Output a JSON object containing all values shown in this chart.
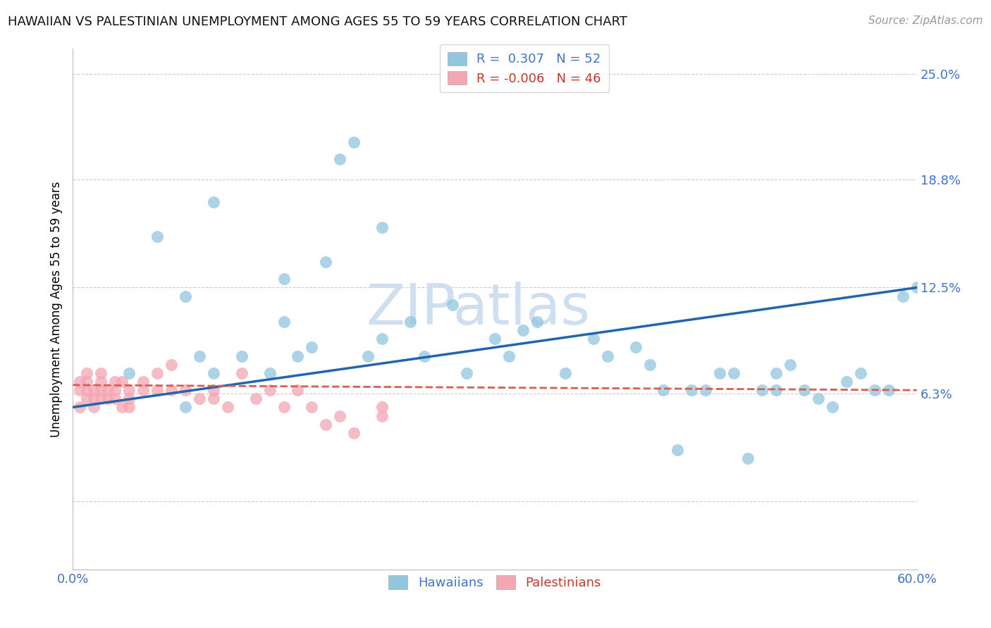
{
  "title": "HAWAIIAN VS PALESTINIAN UNEMPLOYMENT AMONG AGES 55 TO 59 YEARS CORRELATION CHART",
  "source_text": "Source: ZipAtlas.com",
  "ylabel": "Unemployment Among Ages 55 to 59 years",
  "xlim": [
    0.0,
    0.6
  ],
  "ylim": [
    -0.04,
    0.265
  ],
  "xticks": [
    0.0,
    0.1,
    0.2,
    0.3,
    0.4,
    0.5,
    0.6
  ],
  "xtick_labels": [
    "0.0%",
    "",
    "",
    "",
    "",
    "",
    "60.0%"
  ],
  "ytick_positions": [
    0.0,
    0.063,
    0.125,
    0.188,
    0.25
  ],
  "ytick_labels": [
    "",
    "6.3%",
    "12.5%",
    "18.8%",
    "25.0%"
  ],
  "hawaiian_color": "#92c5de",
  "palestinian_color": "#f4a6b2",
  "trend_hawaiian_color": "#2166ac",
  "trend_palestinian_color": "#d6604d",
  "R_hawaiian": 0.307,
  "N_hawaiian": 52,
  "R_palestinian": -0.006,
  "N_palestinian": 46,
  "watermark": "ZIPatlas",
  "watermark_color": "#d0dff0",
  "grid_color": "#cccccc",
  "background_color": "#ffffff",
  "hawaiian_x": [
    0.04,
    0.08,
    0.1,
    0.12,
    0.14,
    0.15,
    0.16,
    0.17,
    0.19,
    0.2,
    0.21,
    0.22,
    0.24,
    0.25,
    0.27,
    0.28,
    0.3,
    0.31,
    0.32,
    0.35,
    0.37,
    0.38,
    0.4,
    0.42,
    0.44,
    0.45,
    0.46,
    0.47,
    0.49,
    0.5,
    0.51,
    0.52,
    0.53,
    0.54,
    0.55,
    0.56,
    0.57,
    0.58,
    0.59,
    0.6,
    0.48,
    0.43,
    0.1,
    0.06,
    0.08,
    0.09,
    0.15,
    0.18,
    0.22,
    0.33,
    0.41,
    0.5
  ],
  "hawaiian_y": [
    0.075,
    0.055,
    0.075,
    0.085,
    0.075,
    0.105,
    0.085,
    0.09,
    0.2,
    0.21,
    0.085,
    0.095,
    0.105,
    0.085,
    0.115,
    0.075,
    0.095,
    0.085,
    0.1,
    0.075,
    0.095,
    0.085,
    0.09,
    0.065,
    0.065,
    0.065,
    0.075,
    0.075,
    0.065,
    0.065,
    0.08,
    0.065,
    0.06,
    0.055,
    0.07,
    0.075,
    0.065,
    0.065,
    0.12,
    0.125,
    0.025,
    0.03,
    0.175,
    0.155,
    0.12,
    0.085,
    0.13,
    0.14,
    0.16,
    0.105,
    0.08,
    0.075
  ],
  "palestinian_x": [
    0.005,
    0.005,
    0.005,
    0.01,
    0.01,
    0.01,
    0.01,
    0.015,
    0.015,
    0.015,
    0.02,
    0.02,
    0.02,
    0.02,
    0.025,
    0.025,
    0.03,
    0.03,
    0.03,
    0.035,
    0.035,
    0.04,
    0.04,
    0.04,
    0.05,
    0.05,
    0.06,
    0.06,
    0.07,
    0.07,
    0.08,
    0.09,
    0.1,
    0.1,
    0.11,
    0.12,
    0.13,
    0.14,
    0.15,
    0.16,
    0.17,
    0.18,
    0.19,
    0.2,
    0.22,
    0.22
  ],
  "palestinian_y": [
    0.055,
    0.065,
    0.07,
    0.06,
    0.065,
    0.07,
    0.075,
    0.055,
    0.065,
    0.06,
    0.06,
    0.065,
    0.07,
    0.075,
    0.06,
    0.065,
    0.065,
    0.06,
    0.07,
    0.055,
    0.07,
    0.065,
    0.06,
    0.055,
    0.07,
    0.065,
    0.075,
    0.065,
    0.08,
    0.065,
    0.065,
    0.06,
    0.065,
    0.06,
    0.055,
    0.075,
    0.06,
    0.065,
    0.055,
    0.065,
    0.055,
    0.045,
    0.05,
    0.04,
    0.055,
    0.05
  ],
  "trend_hawaiian_x0": 0.0,
  "trend_hawaiian_y0": 0.055,
  "trend_hawaiian_x1": 0.6,
  "trend_hawaiian_y1": 0.125,
  "trend_palestinian_x0": 0.0,
  "trend_palestinian_y0": 0.068,
  "trend_palestinian_x1": 0.6,
  "trend_palestinian_y1": 0.065
}
